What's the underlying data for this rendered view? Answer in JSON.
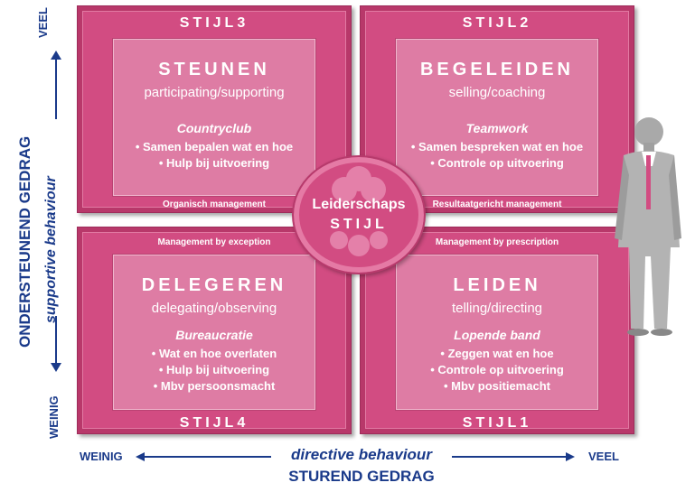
{
  "quadrants": {
    "q3": {
      "stijl": "STIJL3",
      "title": "STEUNEN",
      "subtitle": "participating/supporting",
      "style_name": "Countryclub",
      "bullets": [
        "• Samen bepalen wat en hoe",
        "• Hulp bij uitvoering"
      ],
      "mgmt": "Organisch management"
    },
    "q2": {
      "stijl": "STIJL2",
      "title": "BEGELEIDEN",
      "subtitle": "selling/coaching",
      "style_name": "Teamwork",
      "bullets": [
        "• Samen bespreken wat en hoe",
        "• Controle op uitvoering"
      ],
      "mgmt": "Resultaatgericht management"
    },
    "q4": {
      "stijl": "STIJL4",
      "title": "DELEGEREN",
      "subtitle": "delegating/observing",
      "style_name": "Bureaucratie",
      "bullets": [
        "• Wat en hoe overlaten",
        "• Hulp bij uitvoering",
        "• Mbv persoonsmacht"
      ],
      "mgmt": "Management by exception"
    },
    "q1": {
      "stijl": "STIJL1",
      "title": "LEIDEN",
      "subtitle": "telling/directing",
      "style_name": "Lopende band",
      "bullets": [
        "• Zeggen wat en hoe",
        "• Controle op uitvoering",
        "• Mbv positiemacht"
      ],
      "mgmt": "Management by prescription"
    }
  },
  "center": {
    "line1": "Leiderschaps",
    "line2": "STIJL"
  },
  "y_axis": {
    "title": "ONDERSTEUNEND GEDRAG",
    "subtitle": "supportive behaviour",
    "high": "VEEL",
    "low": "WEINIG"
  },
  "x_axis": {
    "title": "STUREND GEDRAG",
    "subtitle": "directive behaviour",
    "low": "WEINIG",
    "high": "VEEL"
  },
  "colors": {
    "quadrant": "#d24c82",
    "inner": "#de7ca4",
    "axis_text": "#1a3a8a"
  }
}
